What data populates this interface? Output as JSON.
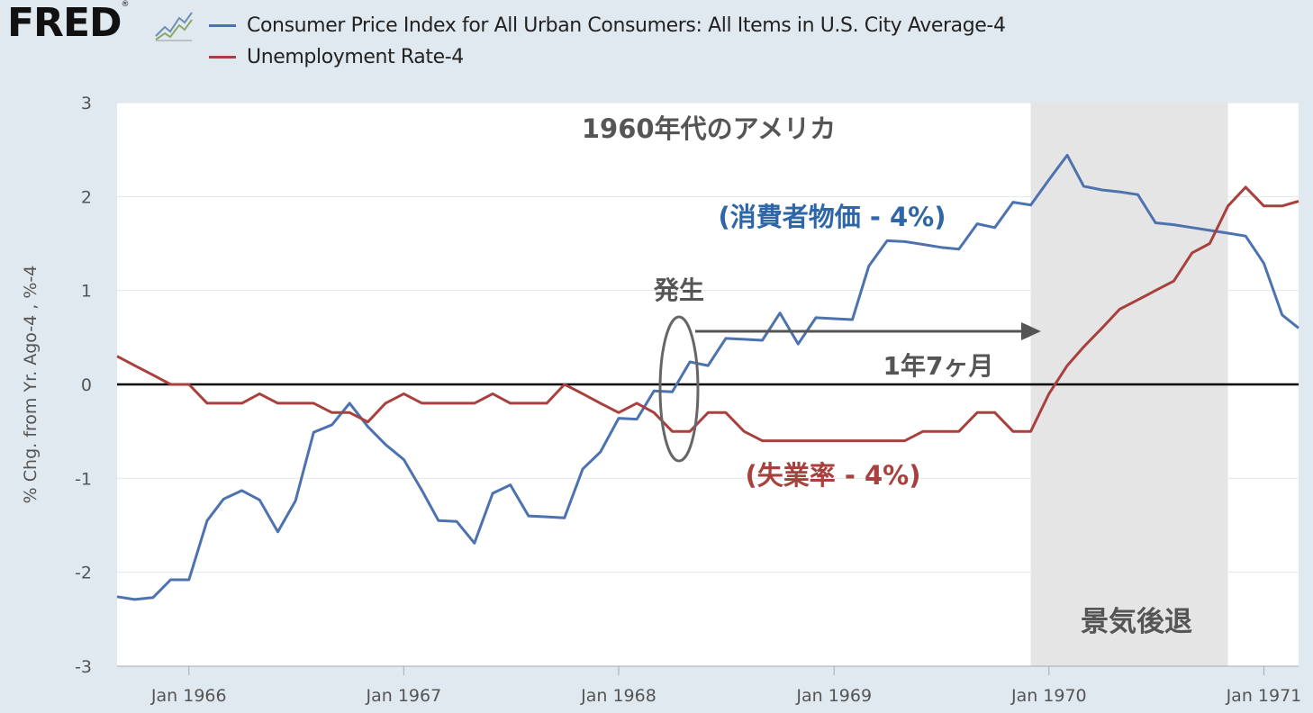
{
  "header": {
    "logo_text": "FRED",
    "logo_mark": "®"
  },
  "colors": {
    "page_background": "#e1e9f0",
    "plot_background": "#ffffff",
    "cpi": "#4c72b0",
    "unemployment": "#a8403e",
    "recession_shading": "#e5e5e5",
    "zero_line": "#000000",
    "annotation_gray": "#555555"
  },
  "chart_data": {
    "type": "line",
    "title": "1960年代のアメリカ",
    "ylabel": "% Chg. from Yr. Ago-4 , %-4",
    "xlabel": "",
    "ylim": [
      -3,
      3
    ],
    "yticks": [
      3,
      2,
      1,
      0,
      -1,
      -2,
      -3
    ],
    "xlim": [
      "1965-09-01",
      "1971-03-01"
    ],
    "xticks": [
      {
        "date": "1966-01-01",
        "label": "Jan 1966"
      },
      {
        "date": "1967-01-01",
        "label": "Jan 1967"
      },
      {
        "date": "1968-01-01",
        "label": "Jan 1968"
      },
      {
        "date": "1969-01-01",
        "label": "Jan 1969"
      },
      {
        "date": "1970-01-01",
        "label": "Jan 1970"
      },
      {
        "date": "1971-01-01",
        "label": "Jan 1971"
      }
    ],
    "grid": true,
    "legend_position": "top",
    "recession": {
      "start": "1969-12-01",
      "end": "1970-11-01",
      "label": "景気後退"
    },
    "annotations": {
      "cpi_label": "(消費者物価 - 4%)",
      "unemployment_label": "(失業率 - 4%)",
      "onset_label": "発生",
      "lag_label": "1年7ヶ月"
    },
    "series": [
      {
        "name": "Consumer Price Index for All Urban Consumers: All Items in U.S. City Average-4",
        "points": [
          [
            "1965-09-01",
            -2.26
          ],
          [
            "1965-10-01",
            -2.29
          ],
          [
            "1965-11-01",
            -2.27
          ],
          [
            "1965-12-01",
            -2.08
          ],
          [
            "1966-01-01",
            -2.08
          ],
          [
            "1966-02-01",
            -1.45
          ],
          [
            "1966-03-01",
            -1.22
          ],
          [
            "1966-04-01",
            -1.13
          ],
          [
            "1966-05-01",
            -1.23
          ],
          [
            "1966-06-01",
            -1.57
          ],
          [
            "1966-07-01",
            -1.24
          ],
          [
            "1966-08-01",
            -0.51
          ],
          [
            "1966-09-01",
            -0.43
          ],
          [
            "1966-10-01",
            -0.2
          ],
          [
            "1966-11-01",
            -0.45
          ],
          [
            "1966-12-01",
            -0.64
          ],
          [
            "1967-01-01",
            -0.8
          ],
          [
            "1967-02-01",
            -1.13
          ],
          [
            "1967-03-01",
            -1.45
          ],
          [
            "1967-04-01",
            -1.46
          ],
          [
            "1967-05-01",
            -1.69
          ],
          [
            "1967-06-01",
            -1.16
          ],
          [
            "1967-07-01",
            -1.07
          ],
          [
            "1967-08-01",
            -1.4
          ],
          [
            "1967-09-01",
            -1.41
          ],
          [
            "1967-10-01",
            -1.42
          ],
          [
            "1967-11-01",
            -0.9
          ],
          [
            "1967-12-01",
            -0.72
          ],
          [
            "1968-01-01",
            -0.36
          ],
          [
            "1968-02-01",
            -0.37
          ],
          [
            "1968-03-01",
            -0.07
          ],
          [
            "1968-04-01",
            -0.08
          ],
          [
            "1968-05-01",
            0.24
          ],
          [
            "1968-06-01",
            0.2
          ],
          [
            "1968-07-01",
            0.49
          ],
          [
            "1968-08-01",
            0.48
          ],
          [
            "1968-09-01",
            0.47
          ],
          [
            "1968-10-01",
            0.76
          ],
          [
            "1968-11-01",
            0.43
          ],
          [
            "1968-12-01",
            0.71
          ],
          [
            "1969-01-01",
            0.7
          ],
          [
            "1969-02-01",
            0.69
          ],
          [
            "1969-03-01",
            1.26
          ],
          [
            "1969-04-01",
            1.53
          ],
          [
            "1969-05-01",
            1.52
          ],
          [
            "1969-06-01",
            1.49
          ],
          [
            "1969-07-01",
            1.46
          ],
          [
            "1969-08-01",
            1.44
          ],
          [
            "1969-09-01",
            1.71
          ],
          [
            "1969-10-01",
            1.67
          ],
          [
            "1969-11-01",
            1.94
          ],
          [
            "1969-12-01",
            1.91
          ],
          [
            "1970-01-01",
            2.18
          ],
          [
            "1970-02-01",
            2.44
          ],
          [
            "1970-03-01",
            2.11
          ],
          [
            "1970-04-01",
            2.07
          ],
          [
            "1970-05-01",
            2.05
          ],
          [
            "1970-06-01",
            2.02
          ],
          [
            "1970-07-01",
            1.72
          ],
          [
            "1970-08-01",
            1.7
          ],
          [
            "1970-09-01",
            1.67
          ],
          [
            "1970-10-01",
            1.64
          ],
          [
            "1970-11-01",
            1.61
          ],
          [
            "1970-12-01",
            1.58
          ],
          [
            "1971-01-01",
            1.29
          ],
          [
            "1971-02-01",
            0.74
          ],
          [
            "1971-03-01",
            0.6
          ]
        ]
      },
      {
        "name": "Unemployment Rate-4",
        "points": [
          [
            "1965-09-01",
            0.3
          ],
          [
            "1965-10-01",
            0.2
          ],
          [
            "1965-11-01",
            0.1
          ],
          [
            "1965-12-01",
            0.0
          ],
          [
            "1966-01-01",
            0.0
          ],
          [
            "1966-02-01",
            -0.2
          ],
          [
            "1966-03-01",
            -0.2
          ],
          [
            "1966-04-01",
            -0.2
          ],
          [
            "1966-05-01",
            -0.1
          ],
          [
            "1966-06-01",
            -0.2
          ],
          [
            "1966-07-01",
            -0.2
          ],
          [
            "1966-08-01",
            -0.2
          ],
          [
            "1966-09-01",
            -0.3
          ],
          [
            "1966-10-01",
            -0.3
          ],
          [
            "1966-11-01",
            -0.4
          ],
          [
            "1966-12-01",
            -0.2
          ],
          [
            "1967-01-01",
            -0.1
          ],
          [
            "1967-02-01",
            -0.2
          ],
          [
            "1967-03-01",
            -0.2
          ],
          [
            "1967-04-01",
            -0.2
          ],
          [
            "1967-05-01",
            -0.2
          ],
          [
            "1967-06-01",
            -0.1
          ],
          [
            "1967-07-01",
            -0.2
          ],
          [
            "1967-08-01",
            -0.2
          ],
          [
            "1967-09-01",
            -0.2
          ],
          [
            "1967-10-01",
            0.0
          ],
          [
            "1967-11-01",
            -0.1
          ],
          [
            "1967-12-01",
            -0.2
          ],
          [
            "1968-01-01",
            -0.3
          ],
          [
            "1968-02-01",
            -0.2
          ],
          [
            "1968-03-01",
            -0.3
          ],
          [
            "1968-04-01",
            -0.5
          ],
          [
            "1968-05-01",
            -0.5
          ],
          [
            "1968-06-01",
            -0.3
          ],
          [
            "1968-07-01",
            -0.3
          ],
          [
            "1968-08-01",
            -0.5
          ],
          [
            "1968-09-01",
            -0.6
          ],
          [
            "1968-10-01",
            -0.6
          ],
          [
            "1968-11-01",
            -0.6
          ],
          [
            "1968-12-01",
            -0.6
          ],
          [
            "1969-01-01",
            -0.6
          ],
          [
            "1969-02-01",
            -0.6
          ],
          [
            "1969-03-01",
            -0.6
          ],
          [
            "1969-04-01",
            -0.6
          ],
          [
            "1969-05-01",
            -0.6
          ],
          [
            "1969-06-01",
            -0.5
          ],
          [
            "1969-07-01",
            -0.5
          ],
          [
            "1969-08-01",
            -0.5
          ],
          [
            "1969-09-01",
            -0.3
          ],
          [
            "1969-10-01",
            -0.3
          ],
          [
            "1969-11-01",
            -0.5
          ],
          [
            "1969-12-01",
            -0.5
          ],
          [
            "1970-01-01",
            -0.1
          ],
          [
            "1970-02-01",
            0.2
          ],
          [
            "1970-03-01",
            0.4
          ],
          [
            "1970-04-01",
            0.6
          ],
          [
            "1970-05-01",
            0.8
          ],
          [
            "1970-06-01",
            0.9
          ],
          [
            "1970-07-01",
            1.0
          ],
          [
            "1970-08-01",
            1.1
          ],
          [
            "1970-09-01",
            1.4
          ],
          [
            "1970-10-01",
            1.5
          ],
          [
            "1970-11-01",
            1.9
          ],
          [
            "1970-12-01",
            2.1
          ],
          [
            "1971-01-01",
            1.9
          ],
          [
            "1971-02-01",
            1.9
          ],
          [
            "1971-03-01",
            1.95
          ]
        ]
      }
    ]
  }
}
